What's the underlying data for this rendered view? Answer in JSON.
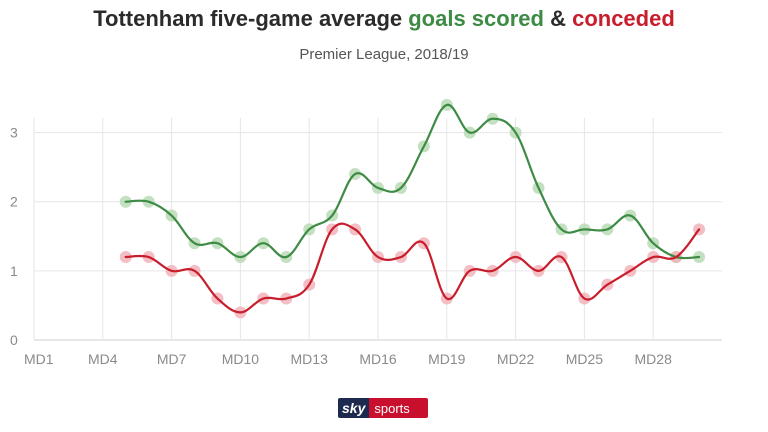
{
  "header": {
    "title_prefix": "Tottenham five-game average ",
    "title_scored": "goals scored",
    "title_amp": " & ",
    "title_conceded": "conceded",
    "subtitle": "Premier League, 2018/19"
  },
  "logo": {
    "part1": "sky",
    "part2": "sports"
  },
  "colors": {
    "scored": "#3d8b44",
    "conceded": "#c81e2c",
    "scored_dot": "#b9dbb6",
    "conceded_dot": "#f2b3bb"
  },
  "chart_data": {
    "type": "line",
    "title": "Tottenham five-game average goals scored & conceded",
    "subtitle": "Premier League, 2018/19",
    "x_min": 1,
    "x_max": 31,
    "x_ticks": [
      1,
      4,
      7,
      10,
      13,
      16,
      19,
      22,
      25,
      28
    ],
    "x_tick_labels": [
      "MD1",
      "MD4",
      "MD7",
      "MD10",
      "MD13",
      "MD16",
      "MD19",
      "MD22",
      "MD25",
      "MD28"
    ],
    "ylim": [
      0,
      3.5
    ],
    "y_ticks": [
      0,
      1,
      2,
      3
    ],
    "grid": true,
    "x": [
      5,
      6,
      7,
      8,
      9,
      10,
      11,
      12,
      13,
      14,
      15,
      16,
      17,
      18,
      19,
      20,
      21,
      22,
      23,
      24,
      25,
      26,
      27,
      28,
      29,
      30
    ],
    "series": [
      {
        "name": "goals scored",
        "values": [
          2,
          2,
          1.8,
          1.4,
          1.4,
          1.2,
          1.4,
          1.2,
          1.6,
          1.8,
          2.4,
          2.2,
          2.2,
          2.8,
          3.4,
          3,
          3.2,
          3,
          2.2,
          1.6,
          1.6,
          1.6,
          1.8,
          1.4,
          1.2,
          1.2
        ]
      },
      {
        "name": "conceded",
        "values": [
          1.2,
          1.2,
          1,
          1,
          0.6,
          0.4,
          0.6,
          0.6,
          0.8,
          1.6,
          1.6,
          1.2,
          1.2,
          1.4,
          0.6,
          1,
          1,
          1.2,
          1,
          1.2,
          0.6,
          0.8,
          1,
          1.2,
          1.2,
          1.6
        ]
      }
    ]
  }
}
